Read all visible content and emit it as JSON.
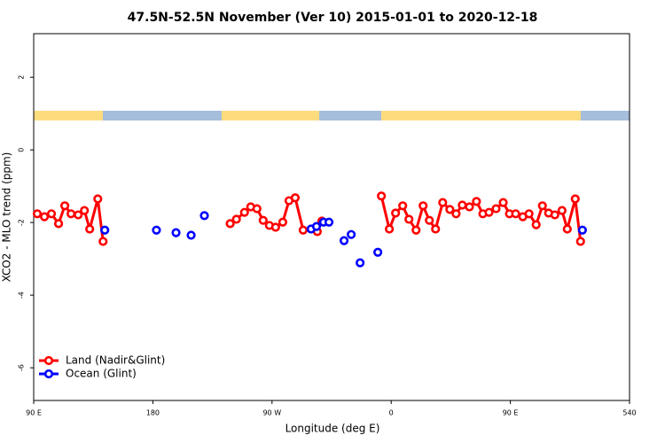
{
  "chart_data": {
    "type": "line",
    "title": "47.5N-52.5N November (Ver 10)   2015-01-01 to 2020-12-18",
    "x_label": "Longitude (deg E)",
    "y_label": "XCO2 - MLO trend (ppm)",
    "xlim": [
      90,
      540
    ],
    "ylim": [
      -6.9,
      3.2
    ],
    "xticks": [
      {
        "value": 90,
        "label": "90 E"
      },
      180,
      {
        "value": 270,
        "label": "90 W"
      },
      {
        "value": 360,
        "label": "0"
      },
      {
        "value": 450,
        "label": "90 E"
      },
      540
    ],
    "yticks": [
      -6,
      -4,
      -2,
      0,
      2
    ],
    "legend": "bottom-left",
    "series": [
      {
        "name": "Land (Nadir&Glint)",
        "color": "#ff0000",
        "mode": "lines+markers",
        "x": [
          92.7,
          98.1,
          103.4,
          108.8,
          113.5,
          118.2,
          123.6,
          128.3,
          132.3,
          138.4,
          142.4,
          null,
          238.4,
          243.1,
          249.2,
          253.9,
          258.6,
          263.3,
          268.0,
          272.7,
          278.1,
          282.8,
          287.5,
          293.5,
          304.2,
          307.6,
          null,
          352.6,
          358.6,
          363.3,
          368.7,
          373.4,
          378.8,
          384.1,
          388.8,
          393.5,
          398.9,
          404.3,
          409.0,
          413.7,
          419.1,
          424.4,
          429.2,
          433.9,
          439.2,
          444.6,
          449.3,
          454.0,
          459.4,
          464.1,
          469.5,
          474.2,
          478.9,
          483.6,
          489.0,
          493.0,
          499.0,
          503.0
        ],
        "values": [
          -1.76,
          -1.84,
          -1.76,
          -2.03,
          -1.54,
          -1.76,
          -1.79,
          -1.67,
          -2.18,
          -1.35,
          -2.52,
          null,
          -2.03,
          -1.91,
          -1.72,
          -1.57,
          -1.62,
          -1.94,
          -2.08,
          -2.13,
          -1.99,
          -1.4,
          -1.32,
          -2.21,
          -2.25,
          -1.96,
          null,
          -1.27,
          -2.18,
          -1.74,
          -1.54,
          -1.91,
          -2.21,
          -1.54,
          -1.94,
          -2.18,
          -1.45,
          -1.64,
          -1.76,
          -1.52,
          -1.57,
          -1.42,
          -1.76,
          -1.72,
          -1.62,
          -1.45,
          -1.76,
          -1.76,
          -1.84,
          -1.76,
          -2.06,
          -1.54,
          -1.74,
          -1.79,
          -1.67,
          -2.18,
          -1.35,
          -2.52
        ]
      },
      {
        "name": "Ocean (Glint)",
        "color": "#0000ff",
        "mode": "markers",
        "x": [
          143.7,
          182.7,
          197.5,
          208.9,
          218.9,
          299.5,
          303.6,
          308.9,
          313.0,
          324.4,
          329.8,
          336.5,
          349.9,
          504.4
        ],
        "values": [
          -2.21,
          -2.21,
          -2.28,
          -2.35,
          -1.81,
          -2.18,
          -2.11,
          -1.99,
          -1.99,
          -2.5,
          -2.33,
          -3.11,
          -2.82,
          -2.21
        ]
      }
    ]
  }
}
